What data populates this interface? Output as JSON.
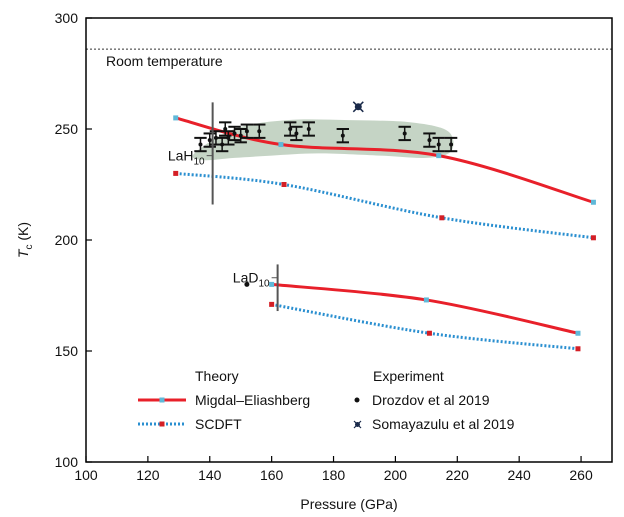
{
  "chart_data": {
    "type": "line",
    "title": "",
    "xlabel": "Pressure (GPa)",
    "ylabel": {
      "main": "T",
      "sub": "c",
      "unit": " (K)"
    },
    "xlim": [
      100,
      270
    ],
    "ylim": [
      100,
      300
    ],
    "xticks": [
      100,
      120,
      140,
      160,
      180,
      200,
      220,
      240,
      260
    ],
    "yticks": [
      100,
      150,
      200,
      250,
      300
    ],
    "grid": false,
    "room_temperature": {
      "label": "Room temperature",
      "value": 286
    },
    "group_labels": [
      {
        "main": "LaH",
        "sub": "10",
        "x": 128,
        "y": 238,
        "bracket": [
          216,
          262
        ]
      },
      {
        "main": "LaD",
        "sub": "10",
        "x": 149,
        "y": 183,
        "bracket": [
          168,
          189
        ]
      }
    ],
    "experiment_region": {
      "name": "LaH10 experimental range",
      "polygon": [
        [
          135,
          239
        ],
        [
          148,
          250
        ],
        [
          165,
          254
        ],
        [
          185,
          254
        ],
        [
          205,
          253
        ],
        [
          217,
          249
        ],
        [
          218,
          240
        ],
        [
          210,
          237
        ],
        [
          195,
          238
        ],
        [
          175,
          239
        ],
        [
          160,
          238
        ],
        [
          148,
          237
        ],
        [
          138,
          236
        ]
      ]
    },
    "series": [
      {
        "name": "Migdal–Eliashberg",
        "style": "theory-me",
        "color": "#e8202a",
        "x": [
          129,
          163,
          214,
          264
        ],
        "y": [
          255,
          243,
          238,
          217
        ]
      },
      {
        "name": "SCDFT",
        "style": "theory-scdft",
        "color": "#2a8fd0",
        "x": [
          129,
          164,
          215,
          264
        ],
        "y": [
          230,
          225,
          210,
          201
        ]
      },
      {
        "name": "Migdal–Eliashberg",
        "style": "theory-me",
        "color": "#e8202a",
        "x": [
          160,
          210,
          259
        ],
        "y": [
          180,
          173,
          158
        ]
      },
      {
        "name": "SCDFT",
        "style": "theory-scdft",
        "color": "#2a8fd0",
        "x": [
          160,
          211,
          259
        ],
        "y": [
          171,
          158,
          151
        ]
      },
      {
        "name": "Drozdov et al 2019",
        "style": "experiment-errorbar",
        "color": "#111111",
        "points": [
          {
            "x": 137,
            "y": 243,
            "xerr": 2,
            "yerr": 3
          },
          {
            "x": 140,
            "y": 245,
            "xerr": 2,
            "yerr": 3
          },
          {
            "x": 142,
            "y": 246,
            "xerr": 2,
            "yerr": 3
          },
          {
            "x": 144,
            "y": 243,
            "xerr": 2,
            "yerr": 3
          },
          {
            "x": 145,
            "y": 250,
            "xerr": 2,
            "yerr": 3
          },
          {
            "x": 146,
            "y": 246,
            "xerr": 2,
            "yerr": 3
          },
          {
            "x": 148,
            "y": 248,
            "xerr": 2,
            "yerr": 3
          },
          {
            "x": 150,
            "y": 247,
            "xerr": 2,
            "yerr": 3
          },
          {
            "x": 152,
            "y": 249,
            "xerr": 2,
            "yerr": 3
          },
          {
            "x": 156,
            "y": 249,
            "xerr": 2,
            "yerr": 3
          },
          {
            "x": 166,
            "y": 250,
            "xerr": 2,
            "yerr": 3
          },
          {
            "x": 168,
            "y": 248,
            "xerr": 2,
            "yerr": 3
          },
          {
            "x": 172,
            "y": 250,
            "xerr": 2,
            "yerr": 3
          },
          {
            "x": 183,
            "y": 247,
            "xerr": 2,
            "yerr": 3
          },
          {
            "x": 203,
            "y": 248,
            "xerr": 2,
            "yerr": 3
          },
          {
            "x": 211,
            "y": 245,
            "xerr": 2,
            "yerr": 3
          },
          {
            "x": 214,
            "y": 243,
            "xerr": 2,
            "yerr": 3
          },
          {
            "x": 218,
            "y": 243,
            "xerr": 2,
            "yerr": 3
          }
        ]
      },
      {
        "name": "",
        "style": "experiment-dot",
        "color": "#111111",
        "points": [
          {
            "x": 152,
            "y": 180
          }
        ]
      },
      {
        "name": "Somayazulu et al 2019",
        "style": "experiment-star",
        "color": "#1a2a4a",
        "points": [
          {
            "x": 188,
            "y": 260
          }
        ]
      }
    ],
    "legend": {
      "placement": "bottom-left",
      "theory_heading": "Theory",
      "experiment_heading": "Experiment",
      "theory_items": [
        "Migdal–Eliashberg",
        "SCDFT"
      ],
      "experiment_items": [
        "Drozdov et al 2019",
        "Somayazulu et al 2019"
      ]
    },
    "colors": {
      "migdal_eliashberg": "#e8202a",
      "scdft": "#2a8fd0",
      "marker_light_blue": "#5fb8d8",
      "marker_red": "#d41f26",
      "experiment_region": "#bfcfbf",
      "experiment": "#111111"
    }
  }
}
